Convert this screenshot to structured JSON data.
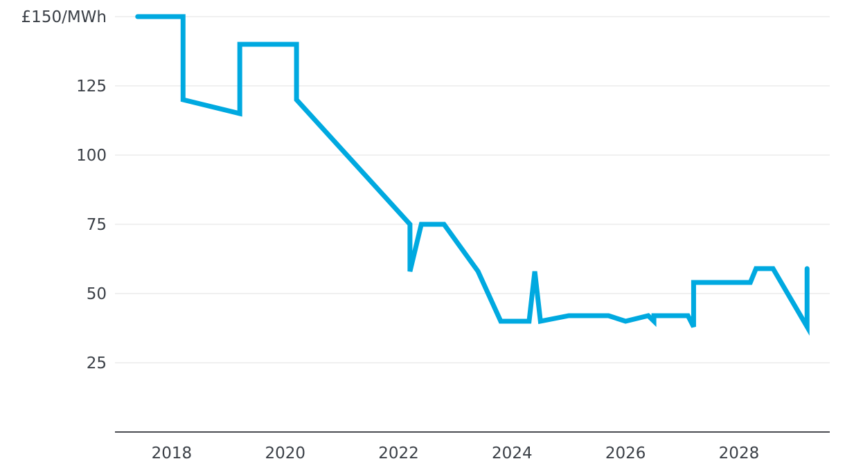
{
  "chart_data": {
    "type": "line",
    "title": "",
    "xlabel": "",
    "ylabel": "",
    "xlim": [
      2017.0,
      2029.6
    ],
    "ylim": [
      0,
      150
    ],
    "grid": true,
    "legend": "none",
    "x_ticks": [
      2018,
      2020,
      2022,
      2024,
      2026,
      2028
    ],
    "x_tick_labels": [
      "2018",
      "2020",
      "2022",
      "2024",
      "2026",
      "2028"
    ],
    "y_ticks": [
      25,
      50,
      75,
      100,
      125,
      150
    ],
    "y_tick_labels": [
      "25",
      "50",
      "75",
      "100",
      "125",
      "£150/MWh"
    ],
    "colors": {
      "series": "#00a9e0",
      "grid": "#ececec",
      "axis": "#2f3136",
      "text": "#3a3f46"
    },
    "series": [
      {
        "x": [
          2017.4,
          2018.2,
          2018.2,
          2019.2,
          2019.2,
          2020.2,
          2020.2,
          2022.2,
          2022.2,
          2022.4,
          2022.6,
          2022.8,
          2023.4,
          2023.8,
          2024.2,
          2024.3,
          2024.4,
          2024.5,
          2025.0,
          2025.7,
          2026.0,
          2026.4,
          2026.5,
          2026.5,
          2027.1,
          2027.2,
          2027.2,
          2028.2,
          2028.3,
          2028.6,
          2029.2,
          2029.2
        ],
        "values": [
          150,
          150,
          120,
          115,
          140,
          140,
          120,
          75,
          58,
          75,
          75,
          75,
          58,
          40,
          40,
          40,
          58,
          40,
          42,
          42,
          40,
          42,
          40,
          42,
          42,
          38,
          54,
          54,
          59,
          59,
          38,
          59
        ]
      }
    ]
  }
}
